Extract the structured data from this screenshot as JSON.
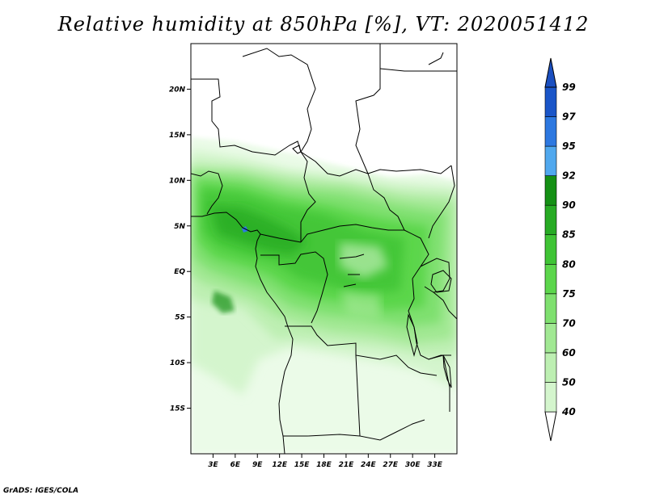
{
  "title": "Relative humidity at 850hPa [%], VT: 2020051412",
  "credit": "GrADS: IGES/COLA",
  "map": {
    "lon_range": [
      0,
      36
    ],
    "lat_range": [
      -20,
      25
    ],
    "lat_ticks": [
      {
        "value": 20,
        "label": "20N"
      },
      {
        "value": 15,
        "label": "15N"
      },
      {
        "value": 10,
        "label": "10N"
      },
      {
        "value": 5,
        "label": "5N"
      },
      {
        "value": 0,
        "label": "EQ"
      },
      {
        "value": -5,
        "label": "5S"
      },
      {
        "value": -10,
        "label": "10S"
      },
      {
        "value": -15,
        "label": "15S"
      }
    ],
    "lon_ticks": [
      {
        "value": 3,
        "label": "3E"
      },
      {
        "value": 6,
        "label": "6E"
      },
      {
        "value": 9,
        "label": "9E"
      },
      {
        "value": 12,
        "label": "12E"
      },
      {
        "value": 15,
        "label": "15E"
      },
      {
        "value": 18,
        "label": "18E"
      },
      {
        "value": 21,
        "label": "21E"
      },
      {
        "value": 24,
        "label": "24E"
      },
      {
        "value": 27,
        "label": "27E"
      },
      {
        "value": 30,
        "label": "30E"
      },
      {
        "value": 33,
        "label": "33E"
      }
    ]
  },
  "colorbar": {
    "levels": [
      {
        "label": "40",
        "color": "#ebfbe8"
      },
      {
        "label": "50",
        "color": "#d4f5cd"
      },
      {
        "label": "60",
        "color": "#bdefb2"
      },
      {
        "label": "70",
        "color": "#a1e893"
      },
      {
        "label": "75",
        "color": "#7fe06f"
      },
      {
        "label": "80",
        "color": "#5cd64c"
      },
      {
        "label": "85",
        "color": "#3fc435"
      },
      {
        "label": "90",
        "color": "#27ab24"
      },
      {
        "label": "92",
        "color": "#149014"
      },
      {
        "label": "95",
        "color": "#50a8ee"
      },
      {
        "label": "97",
        "color": "#2d78e0"
      },
      {
        "label": "99",
        "color": "#1a55c8"
      }
    ],
    "bottom_color": "#ffffff",
    "top_color": "#1a4fc0"
  }
}
